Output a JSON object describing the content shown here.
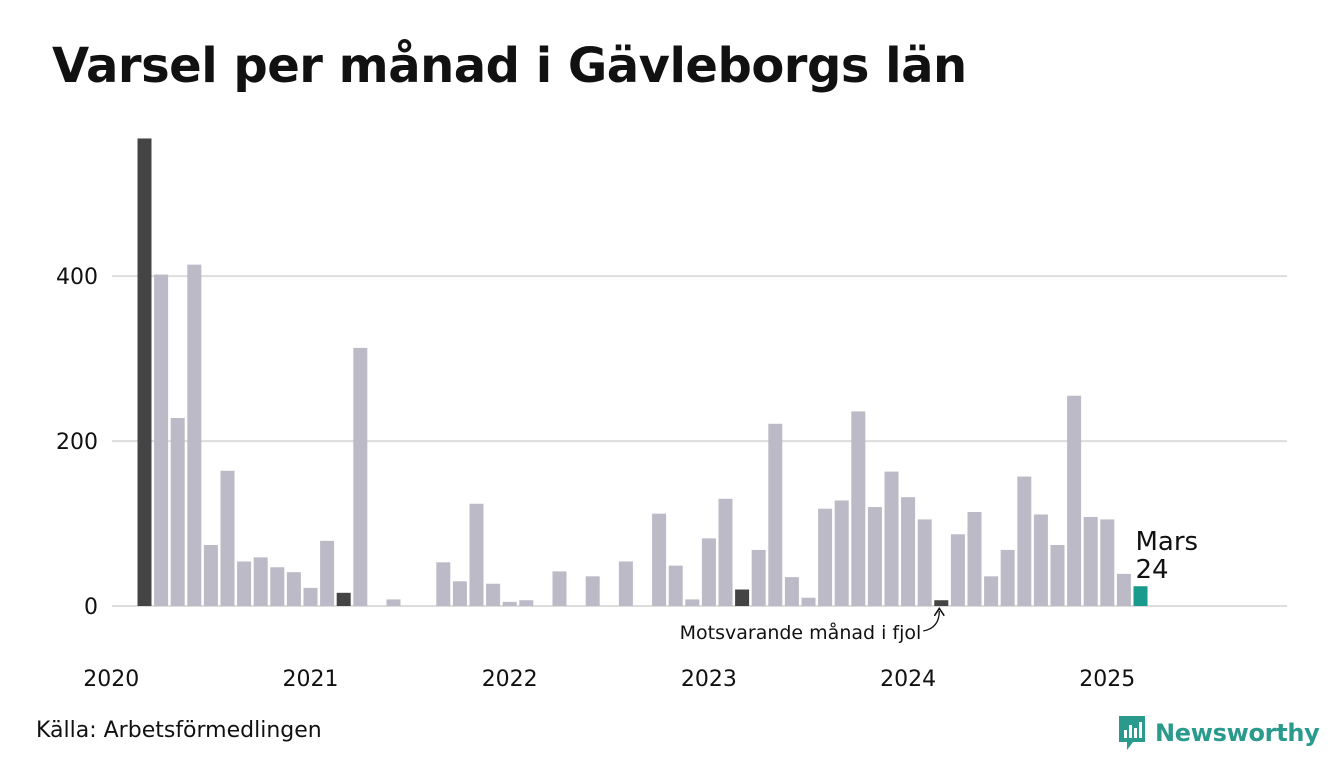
{
  "title": "Varsel per månad i Gävleborgs län",
  "source": "Källa: Arbetsförmedlingen",
  "logo": {
    "name": "Newsworthy",
    "icon": "newsworthy-logo-icon",
    "color": "#2a9a8c"
  },
  "colors": {
    "bar": "#bcbac6",
    "same_month": "#444444",
    "current": "#1a9a8c",
    "grid": "#dddddd"
  },
  "chart_data": {
    "type": "bar",
    "ylim": [
      0,
      570
    ],
    "yticks": [
      0,
      200,
      400
    ],
    "grid": true,
    "x_ticks": [
      "2020",
      "2021",
      "2022",
      "2023",
      "2024",
      "2025"
    ],
    "months_start": "2020-03",
    "months_end": "2025-03",
    "values": [
      567,
      402,
      228,
      414,
      74,
      164,
      54,
      59,
      47,
      41,
      22,
      79,
      16,
      313,
      0,
      8,
      0,
      0,
      53,
      30,
      124,
      27,
      5,
      7,
      0,
      42,
      0,
      36,
      0,
      54,
      0,
      112,
      49,
      8,
      82,
      130,
      20,
      68,
      221,
      35,
      10,
      118,
      128,
      236,
      120,
      163,
      132,
      105,
      7,
      87,
      114,
      36,
      68,
      157,
      111,
      74,
      255,
      108,
      105,
      39,
      24
    ],
    "highlight_same_month_indices": [
      0,
      12,
      24,
      36,
      48
    ],
    "current_index": 60,
    "current_label": "Mars",
    "current_value_label": "24",
    "annotation": "Motsvarande månad i fjol"
  }
}
